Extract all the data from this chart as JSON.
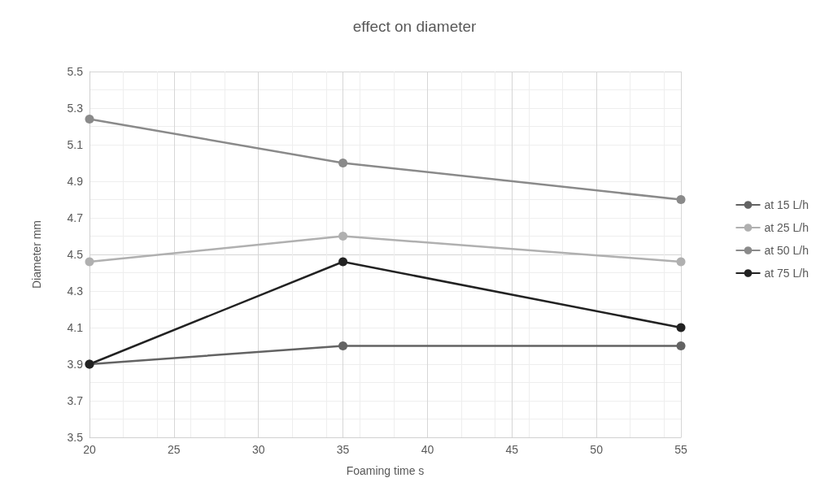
{
  "chart_data": {
    "type": "line",
    "title": "effect on diameter",
    "xlabel": "Foaming time s",
    "ylabel": "Diameter mm",
    "x": [
      20,
      35,
      55
    ],
    "series": [
      {
        "name": "at 15 L/h",
        "color": "#636363",
        "values": [
          3.9,
          4.0,
          4.0
        ]
      },
      {
        "name": "at 25 L/h",
        "color": "#b0b0b0",
        "values": [
          4.46,
          4.6,
          4.46
        ]
      },
      {
        "name": "at 50 L/h",
        "color": "#8a8a8a",
        "values": [
          5.24,
          5.0,
          4.8
        ]
      },
      {
        "name": "at 75 L/h",
        "color": "#222222",
        "values": [
          3.9,
          4.46,
          4.1
        ]
      }
    ],
    "xlim": [
      20,
      55
    ],
    "xticks": [
      20,
      25,
      30,
      35,
      40,
      45,
      50,
      55
    ],
    "ylim": [
      3.5,
      5.5
    ],
    "yticks": [
      3.5,
      3.7,
      3.9,
      4.1,
      4.3,
      4.5,
      4.7,
      4.9,
      5.1,
      5.3,
      5.5
    ],
    "grid": true,
    "legend": "right",
    "marker": "circle",
    "line_style": "solid"
  }
}
